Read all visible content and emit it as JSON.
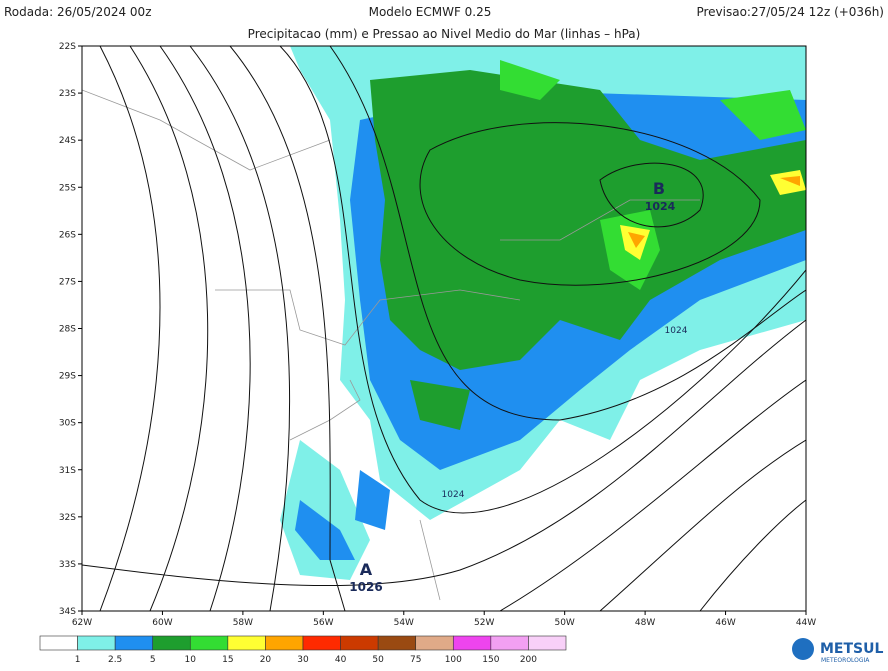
{
  "header": {
    "run": "Rodada: 26/05/2024 00z",
    "model": "Modelo ECMWF 0.25",
    "forecast": "Previsao:27/05/24 12z (+036h)",
    "subtitle": "Precipitacao (mm) e Pressao ao Nivel Medio do Mar (linhas – hPa)"
  },
  "map": {
    "lat_labels": [
      "22S",
      "23S",
      "24S",
      "25S",
      "26S",
      "27S",
      "28S",
      "29S",
      "30S",
      "31S",
      "32S",
      "33S",
      "34S"
    ],
    "lon_labels": [
      "62W",
      "60W",
      "58W",
      "56W",
      "54W",
      "52W",
      "50W",
      "48W",
      "46W",
      "44W"
    ],
    "annotations": [
      {
        "text": "B"
      },
      {
        "text": "1024"
      },
      {
        "text": "1024"
      },
      {
        "text": "1024"
      },
      {
        "text": "A"
      },
      {
        "text": "1026"
      }
    ]
  },
  "legend": {
    "labels": [
      "1",
      "2.5",
      "5",
      "10",
      "15",
      "20",
      "30",
      "40",
      "50",
      "75",
      "100",
      "150",
      "200"
    ],
    "colors": [
      "#ffffff",
      "#7ff0e8",
      "#1f8ff0",
      "#1e9e2e",
      "#33dd33",
      "#ffff33",
      "#ffa500",
      "#ff2a00",
      "#cc3a00",
      "#9a4a12",
      "#e0aa88",
      "#ee44ee",
      "#f2a0f2",
      "#f8d0f8"
    ]
  },
  "logo": {
    "name": "METSUL",
    "tagline": "METEOROLOGIA"
  }
}
